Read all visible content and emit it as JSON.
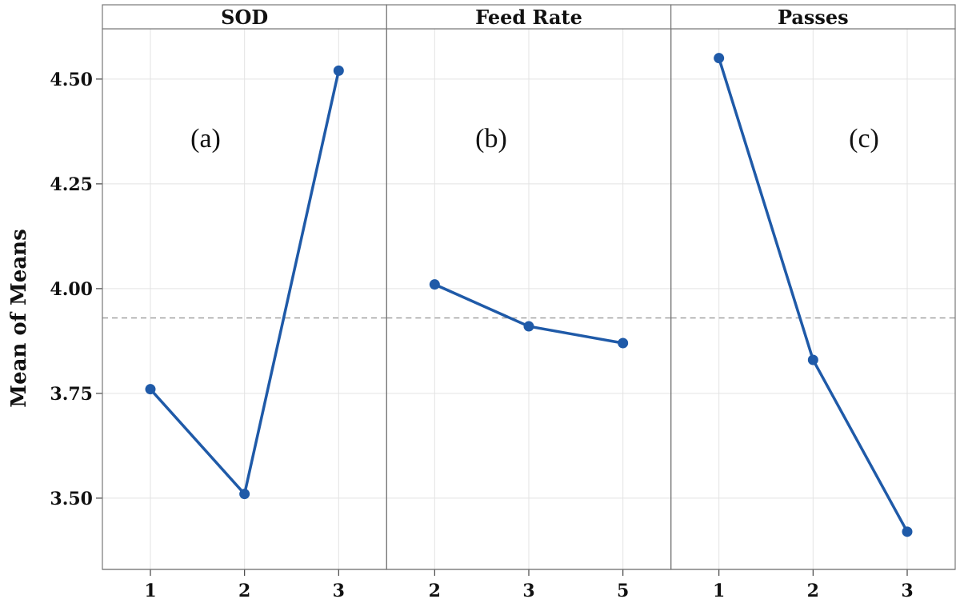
{
  "chart_data": {
    "type": "line",
    "ylabel": "Mean of Means",
    "ylim": [
      3.33,
      4.62
    ],
    "yticks": [
      3.5,
      3.75,
      4.0,
      4.25,
      4.5
    ],
    "ytick_labels": [
      "3.50",
      "3.75",
      "4.00",
      "4.25",
      "4.50"
    ],
    "overall_mean": 3.93,
    "grid": true,
    "line_color": "#1f5aa8",
    "panels": [
      {
        "title": "SOD",
        "annotation": "(a)",
        "categories": [
          "1",
          "2",
          "3"
        ],
        "values": [
          3.76,
          3.51,
          4.52
        ]
      },
      {
        "title": "Feed Rate",
        "annotation": "(b)",
        "categories": [
          "2",
          "3",
          "5"
        ],
        "values": [
          4.01,
          3.91,
          3.87
        ]
      },
      {
        "title": "Passes",
        "annotation": "(c)",
        "categories": [
          "1",
          "2",
          "3"
        ],
        "values": [
          4.55,
          3.83,
          3.42
        ]
      }
    ]
  }
}
